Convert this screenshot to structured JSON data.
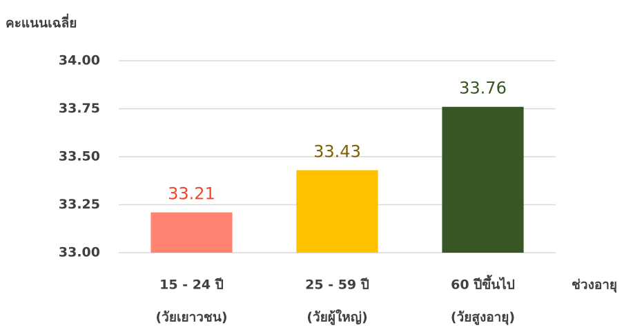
{
  "chart_data": {
    "type": "bar",
    "y_label": "คะแนนเฉลี่ย",
    "x_label": "ช่วงอายุ",
    "categories": [
      [
        "15 - 24 ปี",
        "(วัยเยาวชน)"
      ],
      [
        "25 - 59 ปี",
        "(วัยผู้ใหญ่)"
      ],
      [
        "60 ปีขึ้นไป",
        "(วัยสูงอายุ)"
      ]
    ],
    "values": [
      33.21,
      33.43,
      33.76
    ],
    "colors": [
      "#ff8572",
      "#ffc000",
      "#375623"
    ],
    "value_label_colors": [
      "#f4452a",
      "#7f6000",
      "#375623"
    ],
    "ylim": [
      33,
      34
    ],
    "yticks": [
      {
        "value": 33,
        "label": "33.00"
      },
      {
        "value": 33.25,
        "label": "33.25"
      },
      {
        "value": 33.5,
        "label": "33.50"
      },
      {
        "value": 33.75,
        "label": "33.75"
      },
      {
        "value": 34,
        "label": "34.00"
      }
    ],
    "grid": true
  }
}
